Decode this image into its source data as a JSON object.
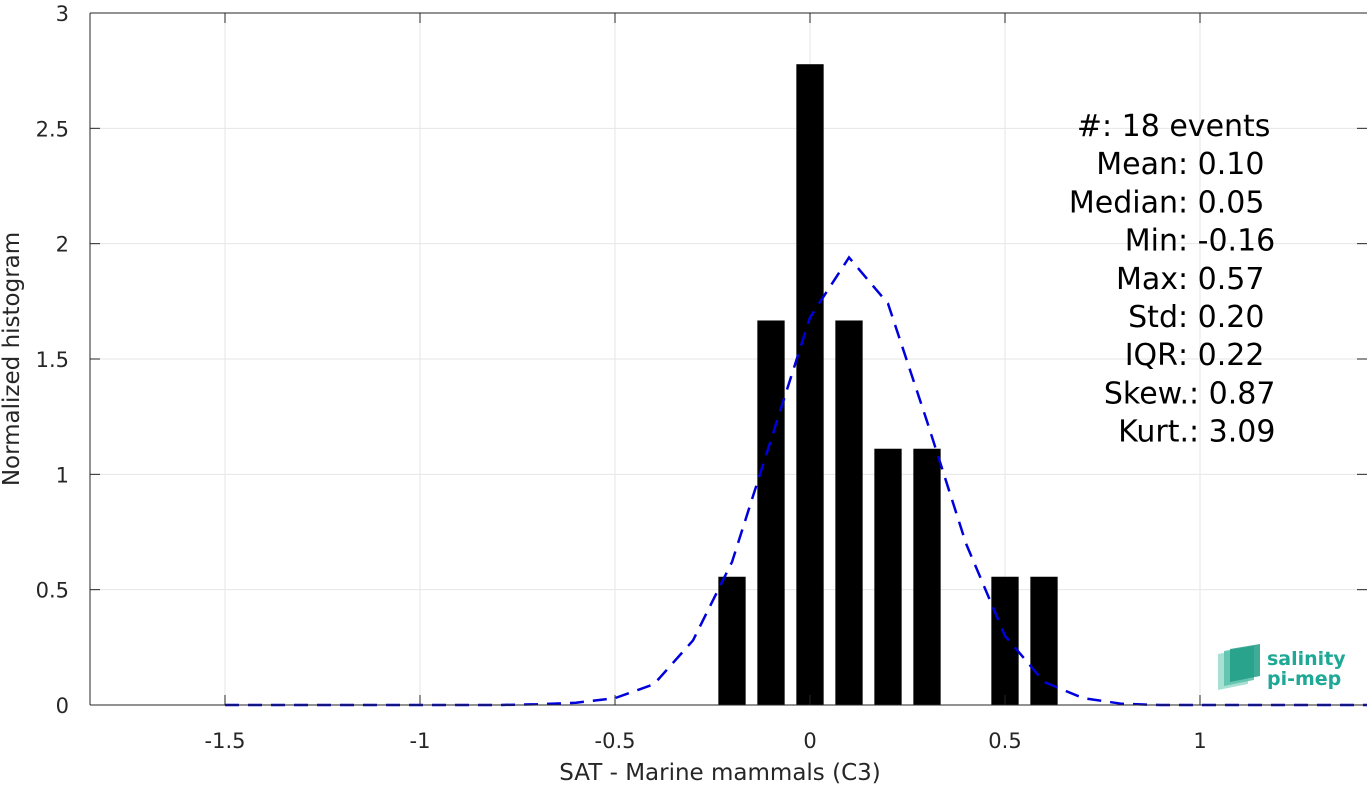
{
  "chart_data": {
    "type": "bar",
    "xlabel": "SAT - Marine mammals (C3)",
    "ylabel": "Normalized histogram",
    "xlim": [
      -1.5,
      1.5
    ],
    "ylim": [
      0,
      3
    ],
    "grid": true,
    "xticks": [
      -1.5,
      -1,
      -0.5,
      0,
      0.5,
      1,
      1.5
    ],
    "xtick_labels": [
      "-1.5",
      "-1",
      "-0.5",
      "0",
      "0.5",
      "1",
      "1.5"
    ],
    "yticks": [
      0,
      0.5,
      1,
      1.5,
      2,
      2.5,
      3
    ],
    "ytick_labels": [
      "0",
      "0.5",
      "1",
      "1.5",
      "2",
      "2.5",
      "3"
    ],
    "bar_width": 0.07,
    "bar_color": "#000000",
    "bars": [
      {
        "x": -0.2,
        "value": 0.556
      },
      {
        "x": -0.1,
        "value": 1.667
      },
      {
        "x": 0.0,
        "value": 2.778
      },
      {
        "x": 0.1,
        "value": 1.667
      },
      {
        "x": 0.2,
        "value": 1.111
      },
      {
        "x": 0.3,
        "value": 1.111
      },
      {
        "x": 0.5,
        "value": 0.556
      },
      {
        "x": 0.6,
        "value": 0.556
      }
    ],
    "fit_curve": {
      "style": "dashed",
      "color": "#0000dd",
      "x": [
        -1.5,
        -1.4,
        -1.3,
        -1.2,
        -1.1,
        -1.0,
        -0.9,
        -0.8,
        -0.7,
        -0.6,
        -0.5,
        -0.4,
        -0.3,
        -0.2,
        -0.1,
        0.0,
        0.1,
        0.2,
        0.3,
        0.4,
        0.5,
        0.6,
        0.7,
        0.8,
        0.9,
        1.0,
        1.1,
        1.2,
        1.3,
        1.4,
        1.5
      ],
      "y": [
        0,
        0,
        0,
        0,
        0,
        0,
        0,
        0,
        0.003,
        0.01,
        0.03,
        0.09,
        0.28,
        0.62,
        1.15,
        1.68,
        1.94,
        1.74,
        1.23,
        0.7,
        0.3,
        0.1,
        0.03,
        0.005,
        0,
        0,
        0,
        0,
        0,
        0,
        0
      ]
    },
    "stats": [
      {
        "label": "#  ",
        "value": ": 18 events"
      },
      {
        "label": "Mean ",
        "value": ": 0.10"
      },
      {
        "label": "Median ",
        "value": ": 0.05"
      },
      {
        "label": "Min ",
        "value": ": -0.16"
      },
      {
        "label": "Max ",
        "value": ": 0.57"
      },
      {
        "label": "Std ",
        "value": ": 0.20"
      },
      {
        "label": "IQR ",
        "value": ": 0.22"
      },
      {
        "label": "Skew. ",
        "value": ": 0.87"
      },
      {
        "label": "Kurt. ",
        "value": ": 3.09"
      }
    ]
  },
  "logo": {
    "line1": "salinity",
    "line2": "pi-mep"
  }
}
